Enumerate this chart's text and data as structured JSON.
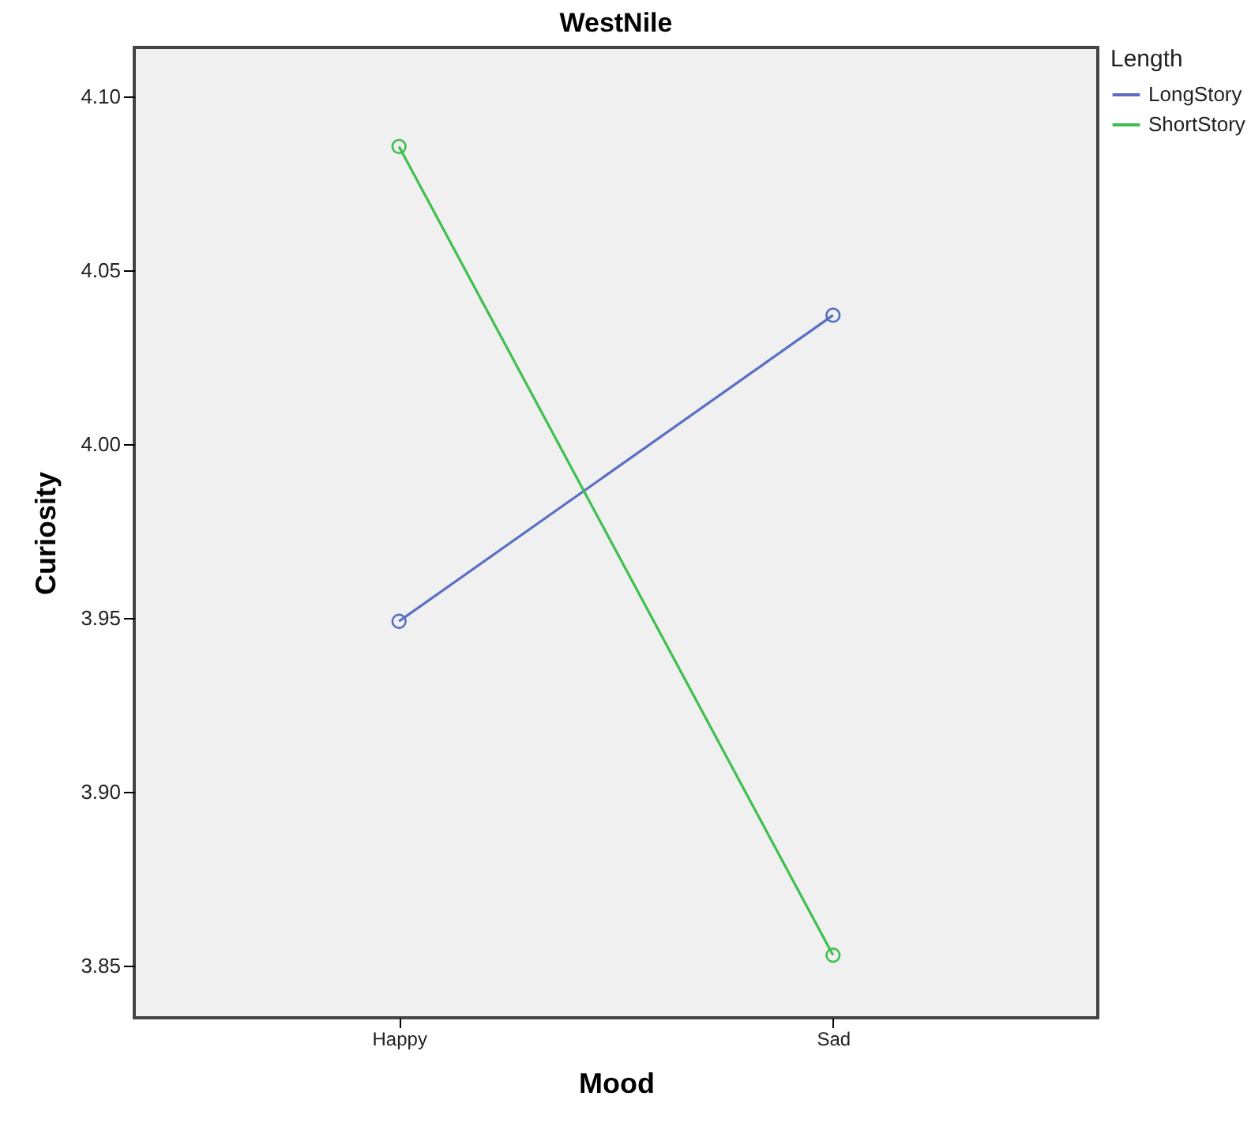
{
  "chart_data": {
    "type": "line",
    "title": "WestNile",
    "xlabel": "Mood",
    "ylabel": "Curiosity",
    "legend_title": "Length",
    "categories": [
      "Happy",
      "Sad"
    ],
    "series": [
      {
        "name": "LongStory",
        "color": "#5a6fc4",
        "values": [
          3.949,
          4.037
        ]
      },
      {
        "name": "ShortStory",
        "color": "#3fbf4f",
        "values": [
          4.0855,
          3.853
        ]
      }
    ],
    "ylim": [
      3.835,
      4.114
    ],
    "yticks": [
      {
        "value": 3.85,
        "label": "3.85"
      },
      {
        "value": 3.9,
        "label": "3.90"
      },
      {
        "value": 3.95,
        "label": "3.95"
      },
      {
        "value": 4.0,
        "label": "4.00"
      },
      {
        "value": 4.05,
        "label": "4.05"
      },
      {
        "value": 4.1,
        "label": "4.10"
      }
    ],
    "grid": false,
    "legend": "top right",
    "marker": "circle",
    "line_style": "solid"
  }
}
